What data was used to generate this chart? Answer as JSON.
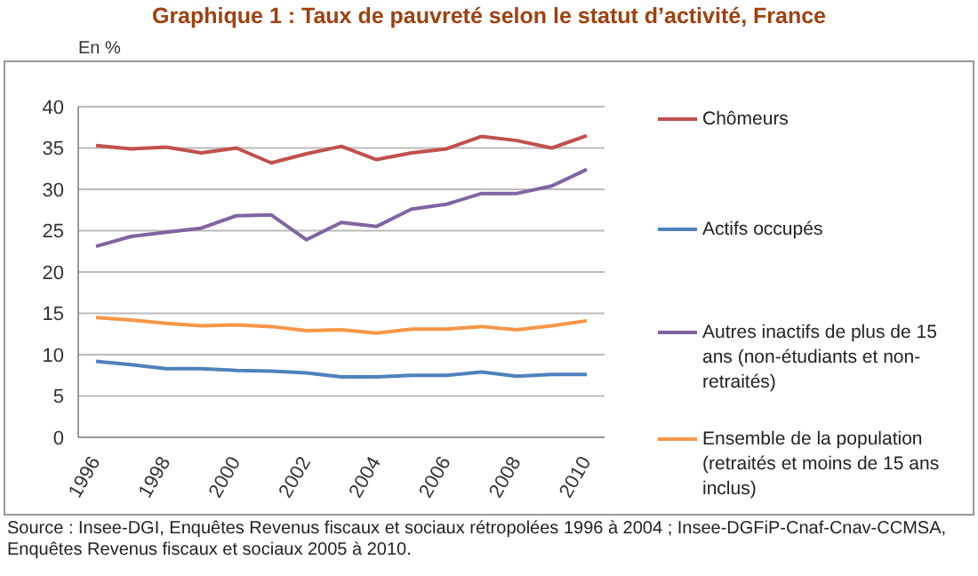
{
  "chart_data": {
    "type": "line",
    "title": "Graphique 1 : Taux de pauvreté selon le statut d’activité, France",
    "ylabel": "En %",
    "categories": [
      "1996",
      null,
      "1998",
      null,
      "2000",
      null,
      "2002",
      null,
      "2004",
      null,
      "2006",
      null,
      "2008",
      null,
      "2010"
    ],
    "series": [
      {
        "name": "Chômeurs",
        "color": "#c0504d",
        "values": [
          35.3,
          34.9,
          35.1,
          34.4,
          35.0,
          33.2,
          34.3,
          35.2,
          33.6,
          34.4,
          34.9,
          36.4,
          35.9,
          35.0,
          36.5
        ]
      },
      {
        "name": "Actifs occupés",
        "color": "#4f81bd",
        "values": [
          9.2,
          8.8,
          8.3,
          8.3,
          8.1,
          8.0,
          7.8,
          7.3,
          7.3,
          7.5,
          7.5,
          7.9,
          7.4,
          7.6,
          7.6
        ]
      },
      {
        "name": "Autres inactifs de plus de 15 ans (non-étudiants et non-retraités)",
        "color": "#8064a2",
        "values": [
          23.1,
          24.3,
          24.8,
          25.3,
          26.8,
          26.9,
          23.9,
          26.0,
          25.5,
          27.6,
          28.2,
          29.5,
          29.5,
          30.4,
          32.4
        ]
      },
      {
        "name": "Ensemble de la population (retraités et moins de 15 ans inclus)",
        "color": "#f79646",
        "values": [
          14.5,
          14.2,
          13.8,
          13.5,
          13.6,
          13.4,
          12.9,
          13.0,
          12.6,
          13.1,
          13.1,
          13.4,
          13.0,
          13.5,
          14.1
        ]
      }
    ],
    "ylim": [
      0,
      40
    ],
    "yticks": [
      0,
      5,
      10,
      15,
      20,
      25,
      30,
      35,
      40
    ],
    "grid": "y",
    "legend": "right",
    "marker": "none",
    "line_style": "solid",
    "annotations": [
      "Source : Insee-DGI, Enquêtes Revenus fiscaux et sociaux rétropolées 1996 à 2004 ; Insee-DGFiP-Cnaf-Cnav-CCMSA, Enquêtes Revenus fiscaux et sociaux 2005 à 2010."
    ]
  }
}
